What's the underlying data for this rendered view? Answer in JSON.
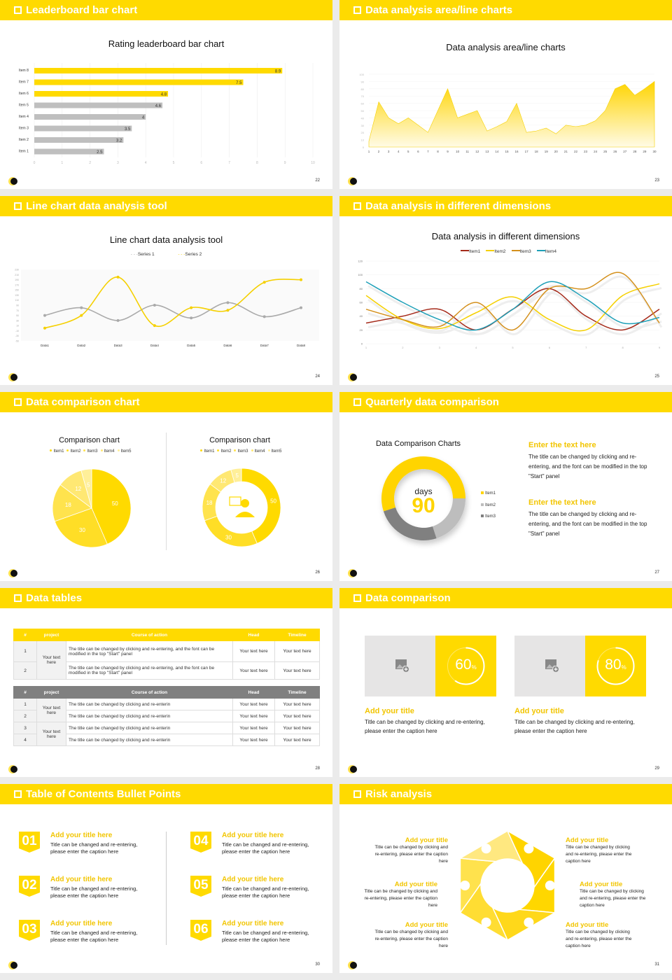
{
  "colors": {
    "accent": "#ffda00",
    "gray_bar": "#bfbfbf",
    "background": "#ebebeb",
    "item1_red": "#a52a1a",
    "item2_yellow": "#f5d000",
    "item3_orange": "#d4901c",
    "item4_teal": "#1fa0b8"
  },
  "slides": [
    {
      "id": "s22",
      "header": "Leaderboard bar chart",
      "page": "22",
      "chart_title": "Rating leaderboard bar chart"
    },
    {
      "id": "s23",
      "header": "Data analysis area/line charts",
      "page": "23",
      "chart_title": "Data analysis area/line charts"
    },
    {
      "id": "s24",
      "header": "Line chart data analysis tool",
      "page": "24",
      "chart_title": "Line chart data analysis tool",
      "legend": [
        "Series 1",
        "Series 2"
      ]
    },
    {
      "id": "s25",
      "header": "Data analysis in different dimensions",
      "page": "25",
      "chart_title": "Data analysis in different dimensions",
      "legend": [
        "Item1",
        "Item2",
        "Item3",
        "Item4"
      ]
    },
    {
      "id": "s26",
      "header": "Data comparison chart",
      "page": "26",
      "left_title": "Comparison chart",
      "right_title": "Comparison chart",
      "legend": [
        "Item1",
        "Item2",
        "Item3",
        "Item4",
        "Item5"
      ]
    },
    {
      "id": "s27",
      "header": "Quarterly data comparison",
      "page": "27",
      "chart_title": "Data Comparison Charts",
      "center_label": "days",
      "center_value": "90",
      "legend": [
        "Item1",
        "Item2",
        "Item3"
      ],
      "blocks": [
        {
          "title": "Enter the text here",
          "text": "The title can be changed by clicking and re-entering, and the font can be modified in the top \"Start\" panel"
        },
        {
          "title": "Enter the text here",
          "text": "The title can be changed by clicking and re-entering, and the font can be modified in the top \"Start\" panel"
        }
      ]
    },
    {
      "id": "s28",
      "header": "Data tables",
      "page": "28",
      "table1": {
        "headers": [
          "#",
          "project",
          "Course of action",
          "Head",
          "Timeline"
        ],
        "rows": [
          {
            "num": "1",
            "project": "Your text here",
            "action": "The title can be changed by clicking and re-entering, and the font can be modified in the top \"Start\" panel",
            "head": "Your text here",
            "timeline": "Your text here"
          },
          {
            "num": "2",
            "project": "",
            "action": "The title can be changed by clicking and re-entering, and the font can be modified in the top \"Start\" panel",
            "head": "Your text here",
            "timeline": "Your text here"
          }
        ]
      },
      "table2": {
        "headers": [
          "#",
          "project",
          "Course of action",
          "Head",
          "Timeline"
        ],
        "rows": [
          {
            "num": "1",
            "project": "Your text here",
            "action": "The title can be changed by clicking and re-enterin",
            "head": "Your text here",
            "timeline": "Your text here"
          },
          {
            "num": "2",
            "project": "",
            "action": "The title can be changed by clicking and re-enterin",
            "head": "Your text here",
            "timeline": "Your text here"
          },
          {
            "num": "3",
            "project": "Your text here",
            "action": "The title can be changed by clicking and re-enterin",
            "head": "Your text here",
            "timeline": "Your text here"
          },
          {
            "num": "4",
            "project": "",
            "action": "The title can be changed by clicking and re-enterin",
            "head": "Your text here",
            "timeline": "Your text here"
          }
        ]
      }
    },
    {
      "id": "s29",
      "header": "Data comparison",
      "page": "29",
      "cards": [
        {
          "percent": "60",
          "unit": "%",
          "title": "Add your title",
          "text": "Title can be changed by clicking and re-entering, please enter the caption here"
        },
        {
          "percent": "80",
          "unit": "%",
          "title": "Add your title",
          "text": "Title can be changed by clicking and re-entering, please enter the caption here"
        }
      ]
    },
    {
      "id": "s30",
      "header": "Table of Contents Bullet Points",
      "page": "30",
      "items": [
        {
          "num": "01",
          "title": "Add your title here",
          "text": "Title can be changed and re-entering, please enter the caption here"
        },
        {
          "num": "02",
          "title": "Add your title here",
          "text": "Title can be changed and re-entering, please enter the caption here"
        },
        {
          "num": "03",
          "title": "Add your title here",
          "text": "Title can be changed and re-entering, please enter the caption here"
        },
        {
          "num": "04",
          "title": "Add your title here",
          "text": "Title can be changed and re-entering, please enter the caption here"
        },
        {
          "num": "05",
          "title": "Add your title here",
          "text": "Title can be changed and re-entering, please enter the caption here"
        },
        {
          "num": "06",
          "title": "Add your title here",
          "text": "Title can be changed and re-entering, please enter the caption here"
        }
      ]
    },
    {
      "id": "s31",
      "header": "Risk analysis",
      "page": "31",
      "items": [
        {
          "title": "Add your title",
          "text": "Title can be changed by clicking and re-entering, please enter the caption here"
        },
        {
          "title": "Add your title",
          "text": "Title can be changed by clicking and re-entering, please enter the caption here"
        },
        {
          "title": "Add your title",
          "text": "Title can be changed by clicking and re-entering, please enter the caption here"
        },
        {
          "title": "Add your title",
          "text": "Title can be changed by clicking and re-entering, please enter the caption here"
        },
        {
          "title": "Add your title",
          "text": "Title can be changed by clicking and re-entering, please enter the caption here"
        },
        {
          "title": "Add your title",
          "text": "Title can be changed by clicking and re-entering, please enter the caption here"
        }
      ],
      "icons": [
        "money-bag-icon",
        "coins-icon",
        "users-icon",
        "pie-chart-icon",
        "building-icon",
        "hand-money-icon"
      ]
    }
  ],
  "chart_data": [
    {
      "type": "bar",
      "orientation": "horizontal",
      "title": "Rating leaderboard bar chart",
      "categories": [
        "Item 8",
        "Item 7",
        "Item 6",
        "Item 5",
        "Item 4",
        "Item 3",
        "Item 2",
        "Item 1"
      ],
      "values": [
        8.9,
        7.5,
        4.8,
        4.6,
        4,
        3.5,
        3.2,
        2.5
      ],
      "highlight": [
        true,
        true,
        true,
        false,
        false,
        false,
        false,
        false
      ],
      "xlim": [
        0,
        10
      ],
      "xticks": [
        0,
        1,
        2,
        3,
        4,
        5,
        6,
        7,
        8,
        9,
        10
      ]
    },
    {
      "type": "area",
      "title": "Data analysis area/line charts",
      "x": [
        1,
        2,
        3,
        4,
        5,
        6,
        7,
        8,
        9,
        10,
        11,
        12,
        13,
        14,
        15,
        16,
        17,
        18,
        19,
        20,
        21,
        22,
        23,
        24,
        25,
        26,
        27,
        28,
        29,
        30
      ],
      "values": [
        8,
        62,
        40,
        32,
        40,
        30,
        20,
        50,
        80,
        40,
        45,
        50,
        22,
        28,
        35,
        60,
        20,
        22,
        26,
        18,
        30,
        28,
        30,
        36,
        50,
        80,
        86,
        71,
        80,
        90
      ],
      "ylim": [
        0,
        100
      ],
      "yticks": [
        0,
        10,
        20,
        30,
        40,
        50,
        60,
        70,
        80,
        90,
        100
      ]
    },
    {
      "type": "line",
      "title": "Line chart data analysis tool",
      "categories": [
        "Data1",
        "Data2",
        "Data3",
        "Data4",
        "Data5",
        "Data6",
        "Data7",
        "Data8"
      ],
      "series": [
        {
          "name": "Series 1",
          "values": [
            50,
            80,
            30,
            90,
            40,
            100,
            45,
            80
          ]
        },
        {
          "name": "Series 2",
          "values": [
            0,
            50,
            200,
            10,
            80,
            70,
            180,
            190
          ]
        }
      ],
      "ylim": [
        -50,
        230
      ]
    },
    {
      "type": "line",
      "title": "Data analysis in different dimensions",
      "categories": [
        "1",
        "2",
        "3",
        "4",
        "5",
        "6",
        "7",
        "8",
        "9"
      ],
      "series": [
        {
          "name": "Item1",
          "values": [
            30,
            40,
            50,
            20,
            50,
            80,
            40,
            20,
            50
          ]
        },
        {
          "name": "Item2",
          "values": [
            70,
            35,
            22,
            45,
            68,
            35,
            20,
            70,
            87
          ]
        },
        {
          "name": "Item3",
          "values": [
            50,
            35,
            25,
            60,
            20,
            80,
            80,
            102,
            30
          ]
        },
        {
          "name": "Item4",
          "values": [
            90,
            60,
            35,
            20,
            50,
            90,
            65,
            30,
            38
          ]
        }
      ],
      "ylim": [
        0,
        120
      ],
      "yticks": [
        0,
        20,
        40,
        60,
        80,
        100,
        120
      ]
    },
    {
      "type": "pie",
      "title": "Comparison chart",
      "categories": [
        "Item1",
        "Item2",
        "Item3",
        "Item4",
        "Item5"
      ],
      "values": [
        50,
        30,
        18,
        12,
        5
      ]
    },
    {
      "type": "pie",
      "subtype": "donut",
      "title": "Comparison chart",
      "categories": [
        "Item1",
        "Item2",
        "Item3",
        "Item4",
        "Item5"
      ],
      "values": [
        50,
        30,
        18,
        12,
        5
      ]
    },
    {
      "type": "pie",
      "subtype": "donut",
      "title": "Data Comparison Charts",
      "categories": [
        "Item1",
        "Item2",
        "Item3"
      ],
      "values": [
        55,
        20,
        25
      ],
      "center": "days 90"
    }
  ]
}
